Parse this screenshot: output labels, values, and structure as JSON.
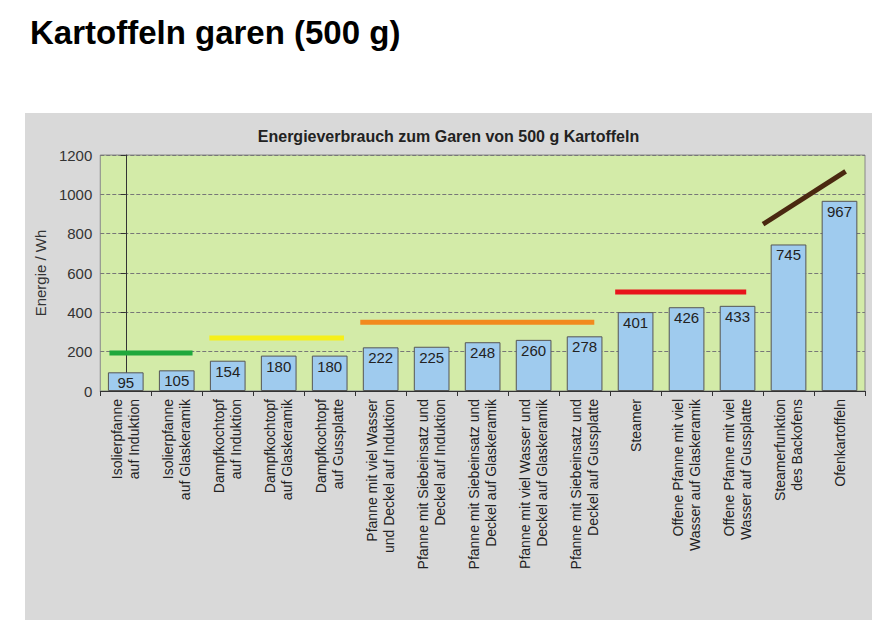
{
  "chart_data": {
    "type": "bar",
    "title": "Kartoffeln garen (500 g)",
    "subtitle": "Energieverbrauch zum Garen von 500 g Kartoffeln",
    "y_label": "Energie / Wh",
    "categories": [
      "Isolierpfanne\nauf Induktion",
      "Isolierpfanne\nauf Glaskeramik",
      "Dampfkochtopf\nauf Induktion",
      "Dampfkochtopf\nauf Glaskeramik",
      "Dampfkochtopf\nauf Gussplatte",
      "Pfanne mit viel Wasser\nund Deckel auf Induktion",
      "Pfanne mit Siebeinsatz und\nDeckel auf Induktion",
      "Pfanne mit Siebeinsatz und\nDeckel auf Glaskeramik",
      "Pfanne mit viel Wasser und\nDeckel auf Glaskeramik",
      "Pfanne mit Siebeinsatz und\nDeckel auf Gussplatte",
      "Steamer",
      "Offene Pfanne mit viel\nWasser auf Glaskeramik",
      "Offene Pfanne mit viel\nWasser auf Gussplatte",
      "Steamerfunktion\ndes Backofens",
      "Ofenkartoffeln"
    ],
    "values": [
      95,
      105,
      154,
      180,
      180,
      222,
      225,
      248,
      260,
      278,
      401,
      426,
      433,
      745,
      967
    ],
    "color": "#9fcbee",
    "data_labels": true,
    "ylim": [
      0,
      1200
    ],
    "yticks": [
      0,
      200,
      400,
      600,
      800,
      1000,
      1200
    ],
    "grid": true,
    "lines": [
      {
        "type": "line",
        "color": "#1fa83c",
        "x": [
          -0.32,
          1.31
        ],
        "values": [
          193,
          193
        ]
      },
      {
        "type": "line",
        "color": "#f5ef1a",
        "x": [
          1.64,
          4.28
        ],
        "values": [
          269,
          269
        ]
      },
      {
        "type": "line",
        "color": "#f28a1e",
        "x": [
          4.6,
          9.19
        ],
        "values": [
          350,
          350
        ]
      },
      {
        "type": "line",
        "color": "#e8141b",
        "x": [
          9.6,
          12.17
        ],
        "values": [
          503,
          503
        ]
      },
      {
        "type": "line",
        "color": "#4a2810",
        "x": [
          12.5,
          14.12
        ],
        "values": [
          848,
          1117
        ]
      }
    ]
  }
}
